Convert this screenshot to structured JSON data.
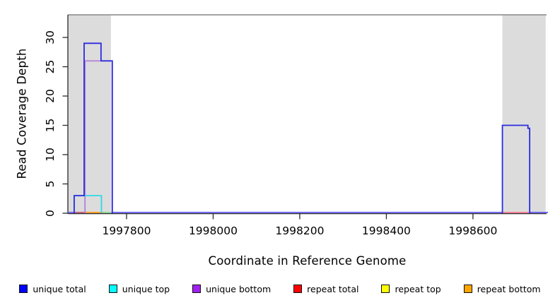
{
  "chart_data": {
    "type": "line",
    "style": "step-coverage",
    "title": "",
    "xlabel": "Coordinate in Reference Genome",
    "ylabel": "Read Coverage Depth",
    "xlim": [
      1997664.5,
      1998770
    ],
    "ylim": [
      0,
      33.86
    ],
    "x_ticks": [
      1997800,
      1998000,
      1998200,
      1998400,
      1998600
    ],
    "y_ticks": [
      0,
      5,
      10,
      15,
      20,
      25,
      30
    ],
    "grid": false,
    "legend_position": "bottom",
    "shaded_regions": [
      {
        "x0": 1997664.5,
        "x1": 1997764,
        "color": "#dcdcdc"
      },
      {
        "x0": 1998668,
        "x1": 1998768,
        "color": "#dcdcdc"
      }
    ],
    "series": [
      {
        "name": "unique total",
        "color": "#2b2be0",
        "steps": [
          [
            1997679,
            1997702,
            3
          ],
          [
            1997702,
            1997741,
            29
          ],
          [
            1997741,
            1997767,
            26
          ],
          [
            1998668,
            1998727,
            15
          ],
          [
            1998727,
            1998731,
            14.5
          ]
        ]
      },
      {
        "name": "unique top",
        "color": "#2fd8e8",
        "steps": [
          [
            1997679,
            1997742,
            3
          ]
        ]
      },
      {
        "name": "unique bottom",
        "color": "#b67fd6",
        "steps": [
          [
            1997704,
            1997767,
            26
          ]
        ]
      },
      {
        "name": "repeat total",
        "color": "#e05a6a",
        "steps": []
      },
      {
        "name": "repeat top",
        "color": "#f0e020",
        "steps": []
      },
      {
        "name": "repeat bottom",
        "color": "#ff9f1a",
        "steps": []
      }
    ],
    "baseline_color": "#5f58ee",
    "baseline_segments": [
      {
        "x0": 1997679,
        "x1": 1997704,
        "color": "#c7607a"
      },
      {
        "x0": 1997706,
        "x1": 1997745,
        "color": "#ff9f1a"
      },
      {
        "x0": 1997745,
        "x1": 1997765,
        "color": "#8fd98f"
      },
      {
        "x0": 1998668,
        "x1": 1998730,
        "color": "#f7808f"
      }
    ],
    "frame": {
      "top_border_color": "#969696",
      "axis_color": "#2a2a2a",
      "tick_label_color": "#000000"
    }
  },
  "legend": {
    "items": [
      {
        "label": "unique total",
        "color": "#0000ff"
      },
      {
        "label": "unique top",
        "color": "#00ffff"
      },
      {
        "label": "unique bottom",
        "color": "#a020f0"
      },
      {
        "label": "repeat total",
        "color": "#ff0000"
      },
      {
        "label": "repeat top",
        "color": "#ffff00"
      },
      {
        "label": "repeat bottom",
        "color": "#ffa500"
      }
    ]
  }
}
